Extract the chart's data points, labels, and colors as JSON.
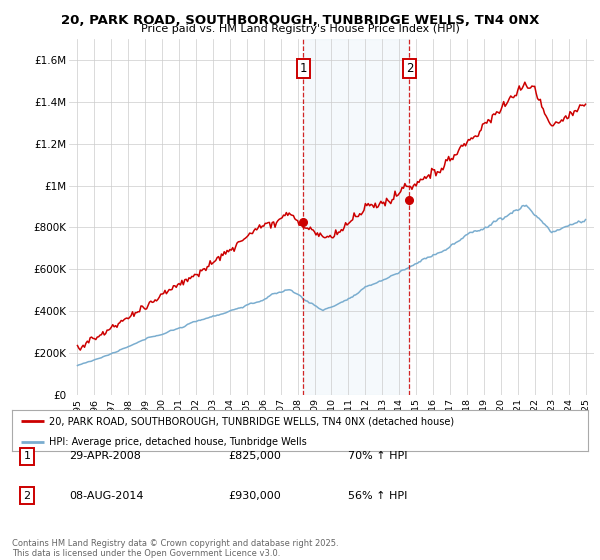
{
  "title": "20, PARK ROAD, SOUTHBOROUGH, TUNBRIDGE WELLS, TN4 0NX",
  "subtitle": "Price paid vs. HM Land Registry's House Price Index (HPI)",
  "ylim": [
    0,
    1700000
  ],
  "xlim": [
    1994.5,
    2025.5
  ],
  "yticks": [
    0,
    200000,
    400000,
    600000,
    800000,
    1000000,
    1200000,
    1400000,
    1600000
  ],
  "ytick_labels": [
    "£0",
    "£200K",
    "£400K",
    "£600K",
    "£800K",
    "£1M",
    "£1.2M",
    "£1.4M",
    "£1.6M"
  ],
  "xticks": [
    1995,
    1996,
    1997,
    1998,
    1999,
    2000,
    2001,
    2002,
    2003,
    2004,
    2005,
    2006,
    2007,
    2008,
    2009,
    2010,
    2011,
    2012,
    2013,
    2014,
    2015,
    2016,
    2017,
    2018,
    2019,
    2020,
    2021,
    2022,
    2023,
    2024,
    2025
  ],
  "event1_x": 2008.33,
  "event1_label": "1",
  "event1_date": "29-APR-2008",
  "event1_price": "£825,000",
  "event1_hpi": "70% ↑ HPI",
  "event1_y": 825000,
  "event2_x": 2014.6,
  "event2_label": "2",
  "event2_date": "08-AUG-2014",
  "event2_price": "£930,000",
  "event2_hpi": "56% ↑ HPI",
  "event2_y": 930000,
  "legend_line1": "20, PARK ROAD, SOUTHBOROUGH, TUNBRIDGE WELLS, TN4 0NX (detached house)",
  "legend_line2": "HPI: Average price, detached house, Tunbridge Wells",
  "footer": "Contains HM Land Registry data © Crown copyright and database right 2025.\nThis data is licensed under the Open Government Licence v3.0.",
  "red_color": "#cc0000",
  "blue_color": "#7aadcf",
  "shade_color": "#daeaf5",
  "background_color": "#ffffff",
  "grid_color": "#cccccc"
}
